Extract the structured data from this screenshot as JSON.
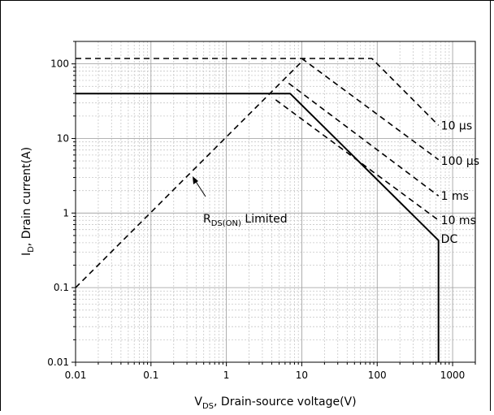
{
  "chart_data": {
    "type": "line",
    "x_scale": "log",
    "y_scale": "log",
    "xlim": [
      0.01,
      2000
    ],
    "ylim": [
      0.01,
      200
    ],
    "grid": true,
    "x_ticks": [
      {
        "value": 0.01,
        "label": "0.01"
      },
      {
        "value": 0.1,
        "label": "0.1"
      },
      {
        "value": 1,
        "label": "1"
      },
      {
        "value": 10,
        "label": "10"
      },
      {
        "value": 100,
        "label": "100"
      },
      {
        "value": 1000,
        "label": "1000"
      }
    ],
    "y_ticks": [
      {
        "value": 0.01,
        "label": "0.01"
      },
      {
        "value": 0.1,
        "label": "0.1"
      },
      {
        "value": 1,
        "label": "1"
      },
      {
        "value": 10,
        "label": "10"
      },
      {
        "value": 100,
        "label": "100"
      }
    ],
    "xlabel": {
      "main": "V",
      "sub": "DS",
      "rest": ", Drain-source voltage(V)"
    },
    "ylabel": {
      "main": "I",
      "sub": "D",
      "rest": ", Drain current(A)"
    },
    "series": [
      {
        "name": "RDS(ON) Limited",
        "style": "dashed",
        "x": [
          0.01,
          11
        ],
        "y": [
          0.1,
          118
        ]
      },
      {
        "name": "10 µs",
        "style": "dashed",
        "x": [
          0.01,
          85,
          650
        ],
        "y": [
          118,
          118,
          15
        ]
      },
      {
        "name": "100 µs",
        "style": "dashed",
        "x": [
          10,
          650
        ],
        "y": [
          118,
          5.2
        ]
      },
      {
        "name": "1 ms",
        "style": "dashed",
        "x": [
          6.7,
          650
        ],
        "y": [
          55,
          1.7
        ]
      },
      {
        "name": "10 ms",
        "style": "dashed",
        "x": [
          4.5,
          650
        ],
        "y": [
          33,
          0.8
        ]
      },
      {
        "name": "DC",
        "style": "solid",
        "x": [
          0.01,
          7,
          650,
          650
        ],
        "y": [
          40,
          40,
          0.43,
          0.01
        ]
      }
    ],
    "annotations": [
      {
        "text": "10 µs",
        "x": 700,
        "y": 15
      },
      {
        "text": "100 µs",
        "x": 700,
        "y": 5.0
      },
      {
        "text": "1 ms",
        "x": 700,
        "y": 1.7
      },
      {
        "text": "10 ms",
        "x": 700,
        "y": 0.8
      },
      {
        "text": "DC",
        "x": 700,
        "y": 0.45
      }
    ],
    "rds_label": {
      "main": "R",
      "sub": "DS(ON)",
      "rest": " Limited"
    }
  }
}
